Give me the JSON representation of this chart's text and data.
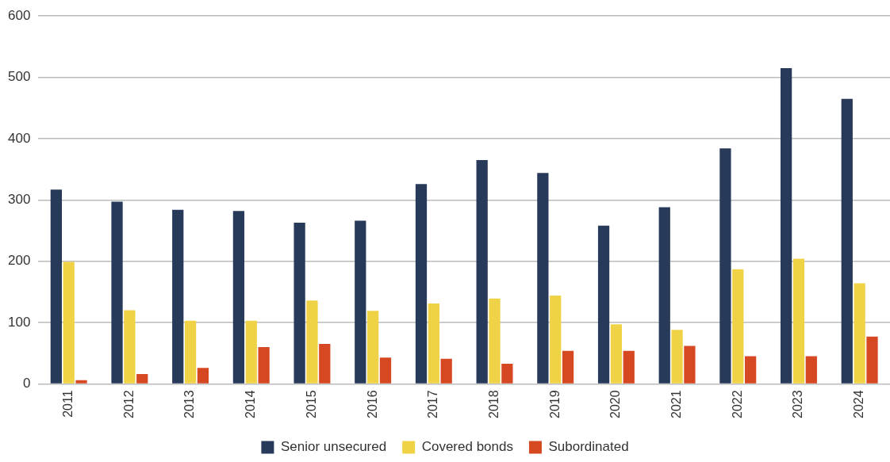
{
  "chart_data": {
    "type": "bar",
    "categories": [
      "2011",
      "2012",
      "2013",
      "2014",
      "2015",
      "2016",
      "2017",
      "2018",
      "2019",
      "2020",
      "2021",
      "2022",
      "2023",
      "2024"
    ],
    "series": [
      {
        "name": "Senior unsecured",
        "color": "#283a5a",
        "values": [
          317,
          297,
          284,
          282,
          263,
          266,
          326,
          365,
          344,
          258,
          288,
          384,
          515,
          465
        ]
      },
      {
        "name": "Covered bonds",
        "color": "#f0d246",
        "values": [
          199,
          120,
          103,
          103,
          136,
          119,
          131,
          139,
          144,
          97,
          88,
          187,
          204,
          164
        ]
      },
      {
        "name": "Subordinated",
        "color": "#d64822",
        "values": [
          6,
          16,
          26,
          60,
          65,
          43,
          41,
          33,
          54,
          54,
          62,
          45,
          45,
          77
        ]
      }
    ],
    "ylim": [
      0,
      600
    ],
    "yticks": [
      0,
      100,
      200,
      300,
      400,
      500,
      600
    ],
    "grid": "y",
    "legend": "bottom"
  }
}
